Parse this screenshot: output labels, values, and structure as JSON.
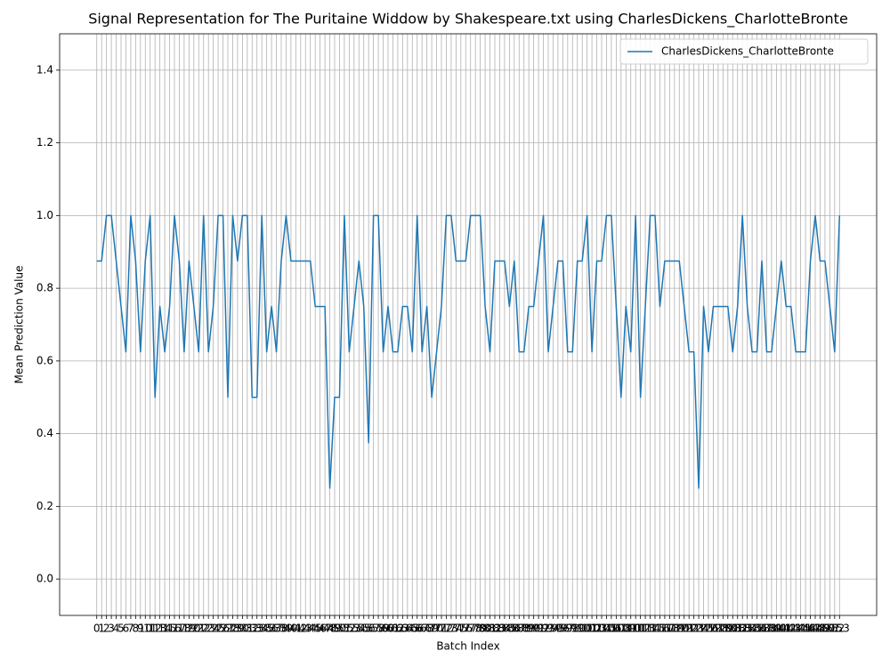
{
  "chart_data": {
    "type": "line",
    "title": "Signal Representation for The Puritaine Widdow by Shakespeare.txt using CharlesDickens_CharlotteBronte",
    "xlabel": "Batch Index",
    "ylabel": "Mean Prediction Value",
    "x": [
      0,
      1,
      2,
      3,
      4,
      5,
      6,
      7,
      8,
      9,
      10,
      11,
      12,
      13,
      14,
      15,
      16,
      17,
      18,
      19,
      20,
      21,
      22,
      23,
      24,
      25,
      26,
      27,
      28,
      29,
      30,
      31,
      32,
      33,
      34,
      35,
      36,
      37,
      38,
      39,
      40,
      41,
      42,
      43,
      44,
      45,
      46,
      47,
      48,
      49,
      50,
      51,
      52,
      53,
      54,
      55,
      56,
      57,
      58,
      59,
      60,
      61,
      62,
      63,
      64,
      65,
      66,
      67,
      68,
      69,
      70,
      71,
      72,
      73,
      74,
      75,
      76,
      77,
      78,
      79,
      80,
      81,
      82,
      83,
      84,
      85,
      86,
      87,
      88,
      89,
      90,
      91,
      92,
      93,
      94,
      95,
      96,
      97,
      98,
      99,
      100,
      101,
      102,
      103,
      104,
      105,
      106,
      107,
      108,
      109,
      110,
      111,
      112,
      113,
      114,
      115,
      116,
      117,
      118,
      119,
      120,
      121,
      122,
      123,
      124,
      125,
      126,
      127,
      128,
      129,
      130,
      131,
      132,
      133,
      134,
      135,
      136,
      137,
      138,
      139,
      140,
      141,
      142,
      143,
      144,
      145,
      146,
      147,
      148,
      149,
      150,
      151,
      152,
      153
    ],
    "series": [
      {
        "name": "CharlesDickens_CharlotteBronte",
        "color": "#1f77b4",
        "values": [
          0.875,
          0.875,
          1.0,
          1.0,
          0.875,
          0.75,
          0.625,
          1.0,
          0.875,
          0.625,
          0.875,
          1.0,
          0.5,
          0.75,
          0.625,
          0.75,
          1.0,
          0.875,
          0.625,
          0.875,
          0.75,
          0.625,
          1.0,
          0.625,
          0.75,
          1.0,
          1.0,
          0.5,
          1.0,
          0.875,
          1.0,
          1.0,
          0.5,
          0.5,
          1.0,
          0.625,
          0.75,
          0.625,
          0.875,
          1.0,
          0.875,
          0.875,
          0.875,
          0.875,
          0.875,
          0.75,
          0.75,
          0.75,
          0.25,
          0.5,
          0.5,
          1.0,
          0.625,
          0.75,
          0.875,
          0.75,
          0.375,
          1.0,
          1.0,
          0.625,
          0.75,
          0.625,
          0.625,
          0.75,
          0.75,
          0.625,
          1.0,
          0.625,
          0.75,
          0.5,
          0.625,
          0.75,
          1.0,
          1.0,
          0.875,
          0.875,
          0.875,
          1.0,
          1.0,
          1.0,
          0.75,
          0.625,
          0.875,
          0.875,
          0.875,
          0.75,
          0.875,
          0.625,
          0.625,
          0.75,
          0.75,
          0.875,
          1.0,
          0.625,
          0.75,
          0.875,
          0.875,
          0.625,
          0.625,
          0.875,
          0.875,
          1.0,
          0.625,
          0.875,
          0.875,
          1.0,
          1.0,
          0.75,
          0.5,
          0.75,
          0.625,
          1.0,
          0.5,
          0.75,
          1.0,
          1.0,
          0.75,
          0.875,
          0.875,
          0.875,
          0.875,
          0.75,
          0.625,
          0.625,
          0.25,
          0.75,
          0.625,
          0.75,
          0.75,
          0.75,
          0.75,
          0.625,
          0.75,
          1.0,
          0.75,
          0.625,
          0.625,
          0.875,
          0.625,
          0.625,
          0.75,
          0.875,
          0.75,
          0.75,
          0.625,
          0.625,
          0.625,
          0.875,
          1.0,
          0.875,
          0.875,
          0.75,
          0.625,
          1.0
        ]
      }
    ],
    "xlim": [
      -7.65,
      160.65
    ],
    "xticks": [
      0,
      1,
      2,
      3,
      4,
      5,
      6,
      7,
      8,
      9,
      10,
      11,
      12,
      13,
      14,
      15,
      16,
      17,
      18,
      19,
      20,
      21,
      22,
      23,
      24,
      25,
      26,
      27,
      28,
      29,
      30,
      31,
      32,
      33,
      34,
      35,
      36,
      37,
      38,
      39,
      40,
      41,
      42,
      43,
      44,
      45,
      46,
      47,
      48,
      49,
      50,
      51,
      52,
      53,
      54,
      55,
      56,
      57,
      58,
      59,
      60,
      61,
      62,
      63,
      64,
      65,
      66,
      67,
      68,
      69,
      70,
      71,
      72,
      73,
      74,
      75,
      76,
      77,
      78,
      79,
      80,
      81,
      82,
      83,
      84,
      85,
      86,
      87,
      88,
      89,
      90,
      91,
      92,
      93,
      94,
      95,
      96,
      97,
      98,
      99,
      100,
      101,
      102,
      103,
      104,
      105,
      106,
      107,
      108,
      109,
      110,
      111,
      112,
      113,
      114,
      115,
      116,
      117,
      118,
      119,
      120,
      121,
      122,
      123,
      124,
      125,
      126,
      127,
      128,
      129,
      130,
      131,
      132,
      133,
      134,
      135,
      136,
      137,
      138,
      139,
      140,
      141,
      142,
      143,
      144,
      145,
      146,
      147,
      148,
      149,
      150,
      151,
      152,
      153
    ],
    "ylim": [
      -0.1,
      1.5
    ],
    "yticks": [
      {
        "value": 0,
        "label": "0.0"
      },
      0.2,
      0.4,
      0.6,
      0.8,
      {
        "value": 1,
        "label": "1.0"
      },
      1.2,
      1.4
    ],
    "grid": true,
    "legend": "upper right"
  }
}
